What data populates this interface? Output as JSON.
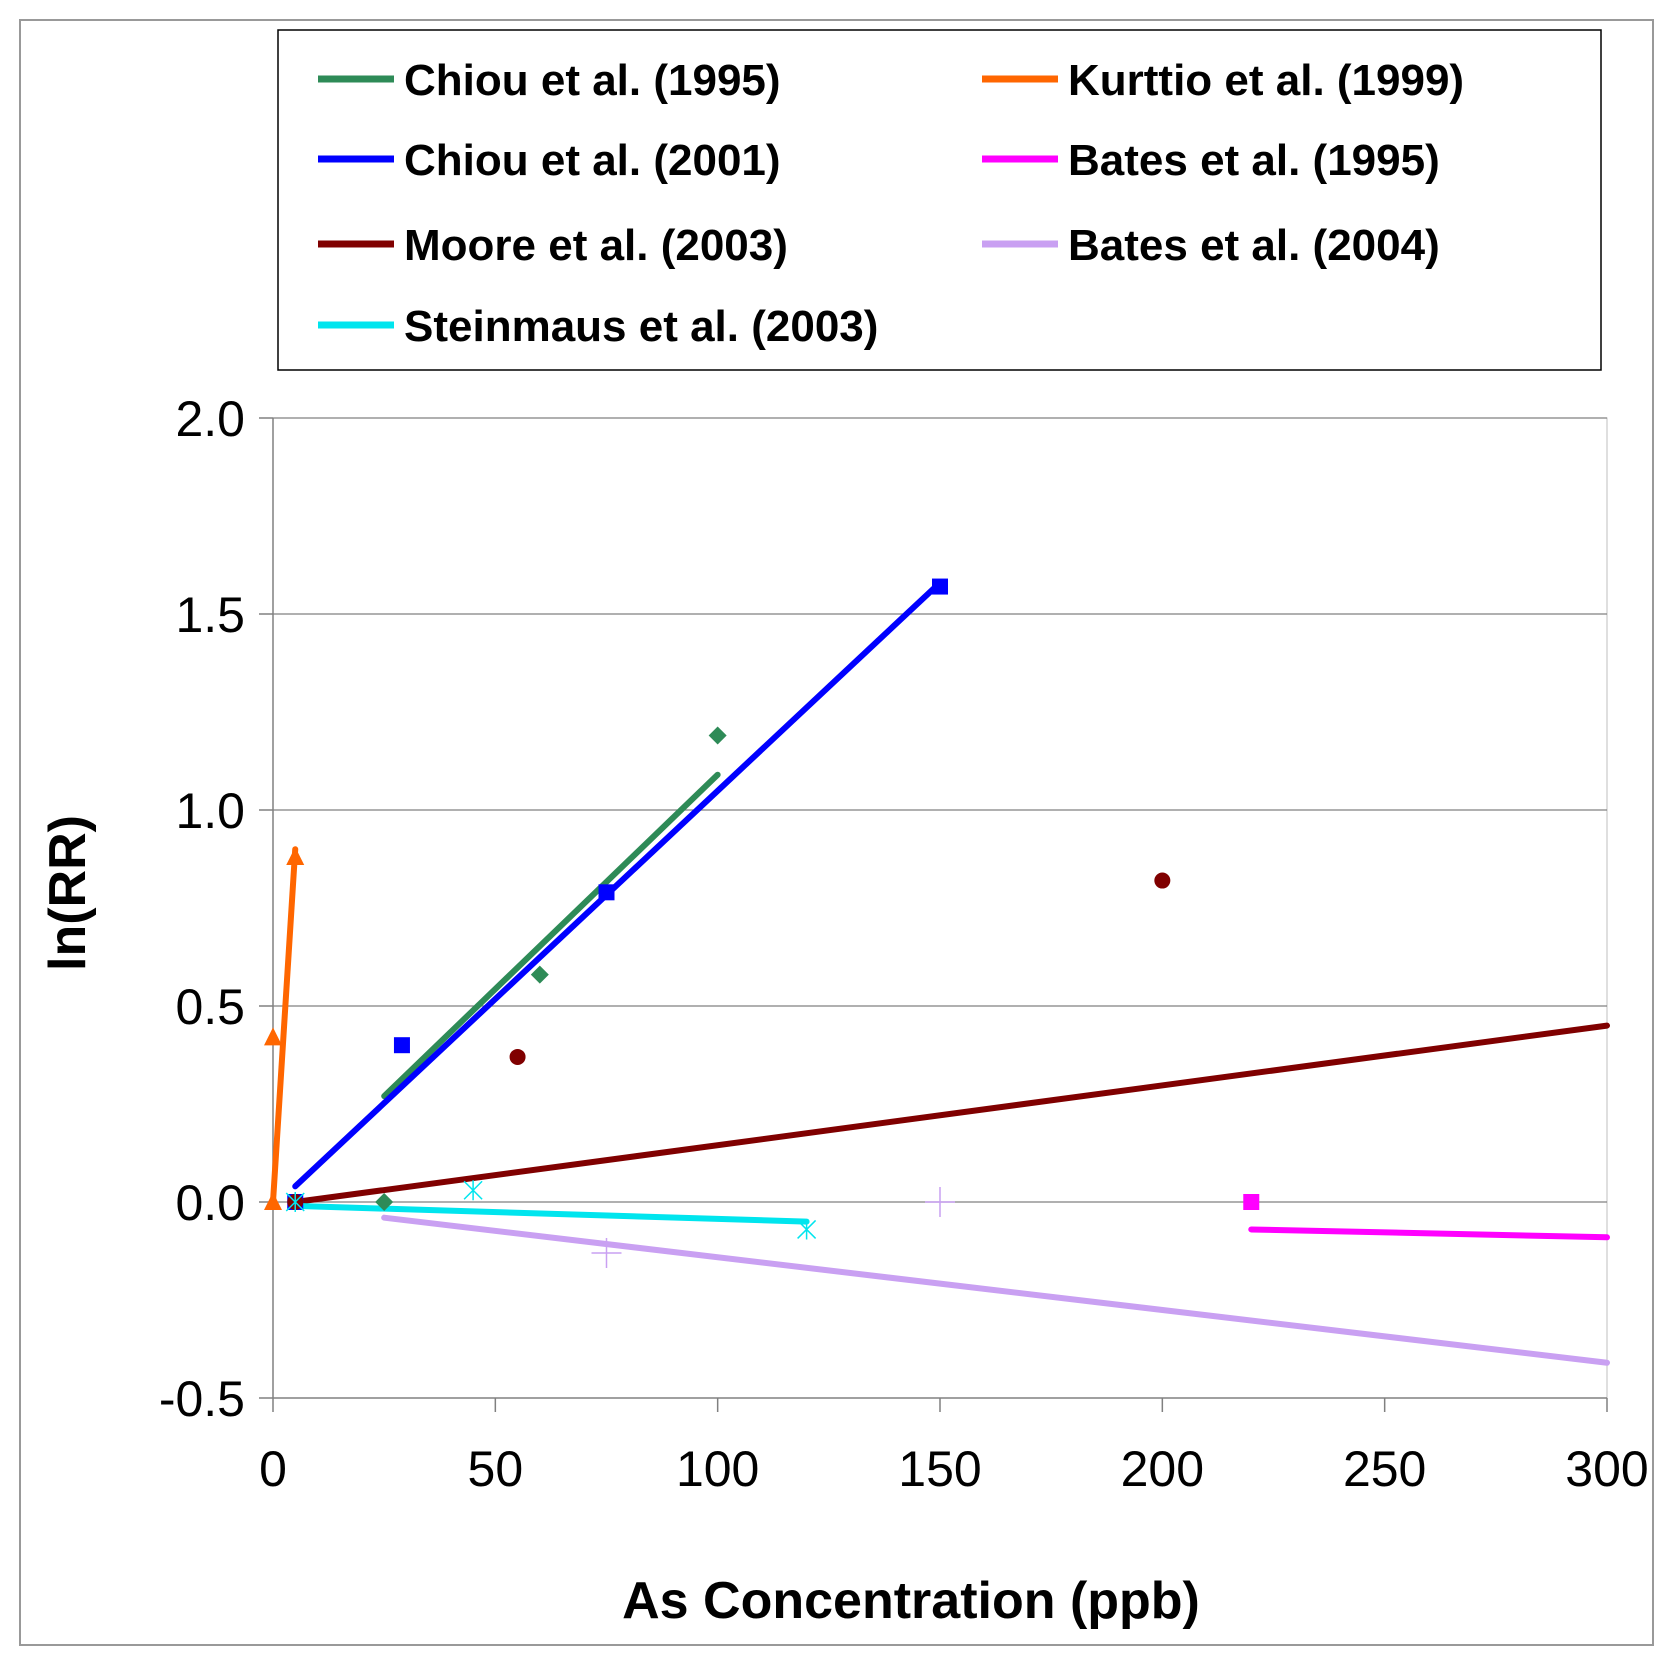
{
  "chart_data": {
    "type": "scatter",
    "title": "",
    "xlabel": "As Concentration (ppb)",
    "ylabel": "ln(RR)",
    "xlim": [
      0,
      300
    ],
    "ylim": [
      -0.5,
      2.0
    ],
    "xticks": [
      0,
      50,
      100,
      150,
      200,
      250,
      300
    ],
    "yticks": [
      -0.5,
      0.0,
      0.5,
      1.0,
      1.5,
      2.0
    ],
    "xtick_labels": [
      "0",
      "50",
      "100",
      "150",
      "200",
      "250",
      "300"
    ],
    "ytick_labels": [
      "-0.5",
      "0.0",
      "0.5",
      "1.0",
      "1.5",
      "2.0"
    ],
    "highlight_tick_color": "#ff0000",
    "grid": "horizontal",
    "legend_position": "top",
    "series": [
      {
        "name": "Chiou et al. (1995)",
        "color": "#2e8b57",
        "marker": "diamond",
        "points": [
          [
            25,
            0.0
          ],
          [
            60,
            0.58
          ],
          [
            100,
            1.19
          ]
        ],
        "fit": [
          [
            25,
            0.27
          ],
          [
            100,
            1.09
          ]
        ]
      },
      {
        "name": "Kurttio et al. (1999)",
        "color": "#ff6600",
        "marker": "triangle",
        "points": [
          [
            0,
            0.0
          ],
          [
            0,
            0.42
          ],
          [
            5,
            0.88
          ]
        ],
        "fit": [
          [
            0,
            0.0
          ],
          [
            5,
            0.9
          ]
        ]
      },
      {
        "name": "Chiou et al. (2001)",
        "color": "#0000ff",
        "marker": "square",
        "points": [
          [
            5,
            0.0
          ],
          [
            29,
            0.4
          ],
          [
            75,
            0.79
          ],
          [
            150,
            1.57
          ]
        ],
        "fit": [
          [
            5,
            0.04
          ],
          [
            150,
            1.58
          ]
        ]
      },
      {
        "name": "Bates et al. (1995)",
        "color": "#ff00ff",
        "marker": "square",
        "points": [
          [
            220,
            0.0
          ]
        ],
        "fit": [
          [
            220,
            -0.07
          ],
          [
            300,
            -0.09
          ]
        ]
      },
      {
        "name": "Moore et al. (2003)",
        "color": "#800000",
        "marker": "circle",
        "points": [
          [
            5,
            0.0
          ],
          [
            55,
            0.37
          ],
          [
            200,
            0.82
          ]
        ],
        "fit": [
          [
            5,
            0.0
          ],
          [
            300,
            0.45
          ]
        ]
      },
      {
        "name": "Bates et al. (2004)",
        "color": "#c9a0f2",
        "marker": "plus",
        "points": [
          [
            75,
            -0.13
          ],
          [
            150,
            0.0
          ]
        ],
        "fit": [
          [
            25,
            -0.04
          ],
          [
            300,
            -0.41
          ]
        ]
      },
      {
        "name": "Steinmaus et al. (2003)",
        "color": "#00e5ee",
        "marker": "asterisk",
        "points": [
          [
            5,
            0.0
          ],
          [
            45,
            0.03
          ],
          [
            120,
            -0.07
          ]
        ],
        "fit": [
          [
            5,
            -0.01
          ],
          [
            120,
            -0.05
          ]
        ]
      }
    ]
  }
}
